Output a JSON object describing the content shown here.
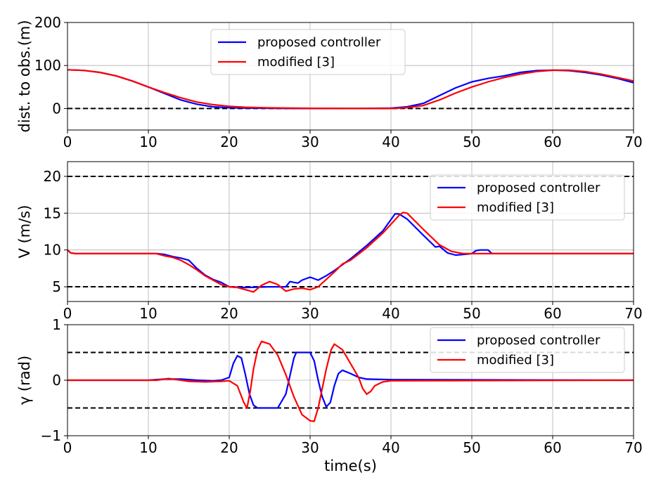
{
  "chart_data": [
    {
      "type": "line",
      "ylabel": "dist. to obs.(m)",
      "xlabel": "",
      "xlim": [
        0,
        70
      ],
      "ylim": [
        -50,
        200
      ],
      "xticks": [
        "0",
        "10",
        "20",
        "30",
        "40",
        "50",
        "60",
        "70"
      ],
      "yticks": [
        "0",
        "100",
        "200"
      ],
      "grid": true,
      "legend": "top-center",
      "hlines": [
        {
          "y": 0,
          "style": "dashed",
          "color": "#000000"
        }
      ],
      "series": [
        {
          "name": "proposed controller",
          "color": "#0000ff",
          "points": [
            [
              0,
              90
            ],
            [
              2,
              88.5
            ],
            [
              4,
              84
            ],
            [
              6,
              76
            ],
            [
              8,
              64
            ],
            [
              10,
              50
            ],
            [
              12,
              35
            ],
            [
              14,
              20
            ],
            [
              16,
              10
            ],
            [
              18,
              4
            ],
            [
              20,
              2
            ],
            [
              22,
              1
            ],
            [
              25,
              0.5
            ],
            [
              30,
              0
            ],
            [
              35,
              0
            ],
            [
              40,
              1
            ],
            [
              42,
              4
            ],
            [
              44,
              12
            ],
            [
              46,
              30
            ],
            [
              48,
              48
            ],
            [
              50,
              62
            ],
            [
              52,
              70
            ],
            [
              54,
              76
            ],
            [
              56,
              84
            ],
            [
              58,
              88
            ],
            [
              60,
              89
            ],
            [
              62,
              88
            ],
            [
              64,
              84
            ],
            [
              66,
              78
            ],
            [
              68,
              70
            ],
            [
              70,
              60
            ]
          ]
        },
        {
          "name": "modified [3]",
          "color": "#ff0000",
          "points": [
            [
              0,
              90
            ],
            [
              2,
              88.5
            ],
            [
              4,
              84
            ],
            [
              6,
              76
            ],
            [
              8,
              64
            ],
            [
              10,
              50
            ],
            [
              12,
              37
            ],
            [
              14,
              25
            ],
            [
              16,
              15
            ],
            [
              18,
              9
            ],
            [
              20,
              5
            ],
            [
              22,
              3
            ],
            [
              25,
              1.5
            ],
            [
              30,
              0.5
            ],
            [
              35,
              0
            ],
            [
              40,
              0
            ],
            [
              42,
              2
            ],
            [
              44,
              7
            ],
            [
              46,
              20
            ],
            [
              48,
              36
            ],
            [
              50,
              50
            ],
            [
              52,
              62
            ],
            [
              54,
              72
            ],
            [
              56,
              80
            ],
            [
              58,
              86
            ],
            [
              60,
              89
            ],
            [
              62,
              89
            ],
            [
              64,
              86
            ],
            [
              66,
              80
            ],
            [
              68,
              72
            ],
            [
              70,
              64
            ]
          ]
        }
      ]
    },
    {
      "type": "line",
      "ylabel": "V (m/s)",
      "xlabel": "",
      "xlim": [
        0,
        70
      ],
      "ylim": [
        3,
        22
      ],
      "xticks": [
        "0",
        "10",
        "20",
        "30",
        "40",
        "50",
        "60",
        "70"
      ],
      "yticks": [
        "5",
        "10",
        "15",
        "20"
      ],
      "grid": true,
      "legend": "top-right",
      "hlines": [
        {
          "y": 20,
          "style": "dashed",
          "color": "#000000"
        },
        {
          "y": 5,
          "style": "dashed",
          "color": "#000000"
        }
      ],
      "series": [
        {
          "name": "proposed controller",
          "color": "#0000ff",
          "points": [
            [
              0,
              10
            ],
            [
              0.4,
              9.6
            ],
            [
              1,
              9.5
            ],
            [
              11,
              9.5
            ],
            [
              12,
              9.4
            ],
            [
              13,
              9.1
            ],
            [
              14,
              8.9
            ],
            [
              15,
              8.6
            ],
            [
              16,
              7.5
            ],
            [
              17,
              6.6
            ],
            [
              18,
              6
            ],
            [
              19,
              5.6
            ],
            [
              20,
              5
            ],
            [
              22,
              4.9
            ],
            [
              25,
              5
            ],
            [
              27,
              5
            ],
            [
              27.5,
              5.7
            ],
            [
              28,
              5.6
            ],
            [
              28.5,
              5.5
            ],
            [
              29,
              5.9
            ],
            [
              29.5,
              6.1
            ],
            [
              30,
              6.3
            ],
            [
              30.5,
              6.1
            ],
            [
              31,
              5.9
            ],
            [
              32,
              6.5
            ],
            [
              33,
              7.2
            ],
            [
              35,
              8.8
            ],
            [
              37,
              10.6
            ],
            [
              39,
              12.6
            ],
            [
              40.5,
              14.9
            ],
            [
              41,
              14.9
            ],
            [
              42,
              14.2
            ],
            [
              44,
              12
            ],
            [
              45.5,
              10.4
            ],
            [
              46,
              10.5
            ],
            [
              47,
              9.6
            ],
            [
              48,
              9.3
            ],
            [
              49,
              9.4
            ],
            [
              50,
              9.5
            ],
            [
              50.5,
              9.9
            ],
            [
              51,
              10
            ],
            [
              52,
              10
            ],
            [
              52.5,
              9.5
            ],
            [
              60,
              9.5
            ],
            [
              70,
              9.5
            ]
          ]
        },
        {
          "name": "modified [3]",
          "color": "#ff0000",
          "points": [
            [
              0,
              10
            ],
            [
              0.4,
              9.6
            ],
            [
              1,
              9.5
            ],
            [
              11,
              9.5
            ],
            [
              12,
              9.2
            ],
            [
              13,
              9
            ],
            [
              14,
              8.6
            ],
            [
              15,
              8
            ],
            [
              16,
              7.3
            ],
            [
              17,
              6.5
            ],
            [
              18,
              5.9
            ],
            [
              19,
              5.3
            ],
            [
              20,
              5
            ],
            [
              21,
              4.9
            ],
            [
              22,
              4.6
            ],
            [
              23,
              4.3
            ],
            [
              24,
              5.2
            ],
            [
              25,
              5.7
            ],
            [
              26,
              5.3
            ],
            [
              27,
              4.4
            ],
            [
              28,
              4.7
            ],
            [
              29,
              4.8
            ],
            [
              30,
              4.6
            ],
            [
              31,
              5
            ],
            [
              32,
              6
            ],
            [
              33,
              7
            ],
            [
              34,
              8.1
            ],
            [
              35,
              8.6
            ],
            [
              37,
              10.3
            ],
            [
              39,
              12.3
            ],
            [
              41,
              14.7
            ],
            [
              41.5,
              15.1
            ],
            [
              42,
              15
            ],
            [
              44,
              12.8
            ],
            [
              46,
              10.7
            ],
            [
              47.5,
              9.8
            ],
            [
              49,
              9.5
            ],
            [
              70,
              9.5
            ]
          ]
        }
      ]
    },
    {
      "type": "line",
      "ylabel": "γ (rad)",
      "xlabel": "time(s)",
      "xlim": [
        0,
        70
      ],
      "ylim": [
        -1,
        1
      ],
      "xticks": [
        "0",
        "10",
        "20",
        "30",
        "40",
        "50",
        "60",
        "70"
      ],
      "yticks": [
        "−1",
        "0",
        "1"
      ],
      "grid": true,
      "legend": "top-right",
      "hlines": [
        {
          "y": 0.5,
          "style": "dashed",
          "color": "#000000"
        },
        {
          "y": -0.5,
          "style": "dashed",
          "color": "#000000"
        }
      ],
      "series": [
        {
          "name": "proposed controller",
          "color": "#0000ff",
          "points": [
            [
              0,
              0
            ],
            [
              10,
              0
            ],
            [
              12,
              0.02
            ],
            [
              14,
              0.02
            ],
            [
              16,
              0
            ],
            [
              18,
              -0.01
            ],
            [
              19,
              0
            ],
            [
              20,
              0.05
            ],
            [
              20.5,
              0.3
            ],
            [
              21,
              0.44
            ],
            [
              21.5,
              0.4
            ],
            [
              22,
              0.1
            ],
            [
              22.5,
              -0.25
            ],
            [
              23,
              -0.45
            ],
            [
              23.5,
              -0.5
            ],
            [
              26,
              -0.5
            ],
            [
              27,
              -0.25
            ],
            [
              28,
              0.4
            ],
            [
              28.3,
              0.5
            ],
            [
              30,
              0.5
            ],
            [
              30.5,
              0.35
            ],
            [
              31,
              0
            ],
            [
              31.5,
              -0.3
            ],
            [
              32,
              -0.48
            ],
            [
              32.5,
              -0.4
            ],
            [
              33,
              -0.1
            ],
            [
              33.5,
              0.12
            ],
            [
              34,
              0.18
            ],
            [
              35,
              0.12
            ],
            [
              36,
              0.05
            ],
            [
              37,
              0.02
            ],
            [
              40,
              0.01
            ],
            [
              70,
              0
            ]
          ]
        },
        {
          "name": "modified [3]",
          "color": "#ff0000",
          "points": [
            [
              0,
              0
            ],
            [
              11,
              0
            ],
            [
              12.5,
              0.03
            ],
            [
              13.5,
              0.01
            ],
            [
              15,
              -0.02
            ],
            [
              17,
              -0.03
            ],
            [
              19,
              -0.02
            ],
            [
              20,
              -0.01
            ],
            [
              21,
              -0.1
            ],
            [
              21.8,
              -0.4
            ],
            [
              22.2,
              -0.5
            ],
            [
              22.6,
              -0.2
            ],
            [
              23,
              0.2
            ],
            [
              23.5,
              0.55
            ],
            [
              24,
              0.7
            ],
            [
              25,
              0.65
            ],
            [
              26,
              0.45
            ],
            [
              27,
              0.1
            ],
            [
              28,
              -0.3
            ],
            [
              29,
              -0.62
            ],
            [
              30,
              -0.73
            ],
            [
              30.5,
              -0.74
            ],
            [
              31,
              -0.5
            ],
            [
              32,
              0.2
            ],
            [
              32.6,
              0.55
            ],
            [
              33,
              0.65
            ],
            [
              34,
              0.55
            ],
            [
              35,
              0.3
            ],
            [
              36,
              0.05
            ],
            [
              36.5,
              -0.15
            ],
            [
              37,
              -0.25
            ],
            [
              37.5,
              -0.2
            ],
            [
              38,
              -0.1
            ],
            [
              39,
              -0.03
            ],
            [
              40,
              -0.01
            ],
            [
              70,
              0
            ]
          ]
        }
      ]
    }
  ]
}
